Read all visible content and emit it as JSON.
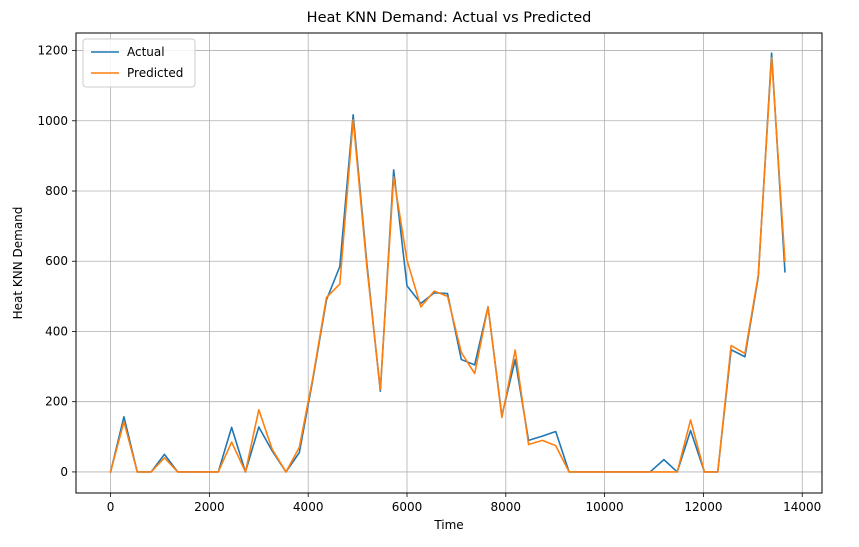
{
  "chart_data": {
    "type": "line",
    "title": "Heat KNN Demand: Actual vs Predicted",
    "xlabel": "Time",
    "ylabel": "Heat KNN Demand",
    "xlim": [
      -700,
      14400
    ],
    "ylim": [
      -60,
      1250
    ],
    "xticks": [
      0,
      2000,
      4000,
      6000,
      8000,
      10000,
      12000,
      14000
    ],
    "yticks": [
      0,
      200,
      400,
      600,
      800,
      1000,
      1200
    ],
    "grid": true,
    "legend_position": "top-left",
    "colors": {
      "Actual": "#1f77b4",
      "Predicted": "#ff7f0e"
    },
    "x": [
      0,
      270,
      540,
      820,
      1090,
      1360,
      1640,
      1910,
      2180,
      2450,
      2730,
      3000,
      3270,
      3550,
      3820,
      4090,
      4370,
      4640,
      4910,
      5190,
      5460,
      5730,
      6000,
      6280,
      6550,
      6820,
      7100,
      7370,
      7640,
      7920,
      8190,
      8460,
      8740,
      9010,
      9280,
      9560,
      9830,
      10100,
      10380,
      10650,
      10920,
      11200,
      11470,
      11740,
      12020,
      12290,
      12560,
      12840,
      13110,
      13380,
      13650
    ],
    "series": [
      {
        "name": "Actual",
        "values": [
          0,
          157,
          0,
          0,
          50,
          0,
          0,
          0,
          0,
          127,
          0,
          128,
          60,
          0,
          55,
          260,
          490,
          585,
          1017,
          590,
          230,
          860,
          530,
          480,
          510,
          508,
          320,
          305,
          470,
          160,
          320,
          90,
          102,
          115,
          0,
          0,
          0,
          0,
          0,
          0,
          0,
          35,
          0,
          118,
          0,
          0,
          348,
          328,
          555,
          1193,
          570
        ]
      },
      {
        "name": "Predicted",
        "values": [
          0,
          143,
          0,
          0,
          40,
          0,
          0,
          0,
          0,
          85,
          0,
          177,
          65,
          0,
          70,
          265,
          497,
          535,
          1003,
          580,
          235,
          840,
          603,
          470,
          515,
          500,
          340,
          280,
          470,
          155,
          347,
          78,
          90,
          75,
          0,
          0,
          0,
          0,
          0,
          0,
          0,
          0,
          0,
          148,
          0,
          0,
          360,
          337,
          560,
          1180,
          600
        ]
      }
    ]
  }
}
